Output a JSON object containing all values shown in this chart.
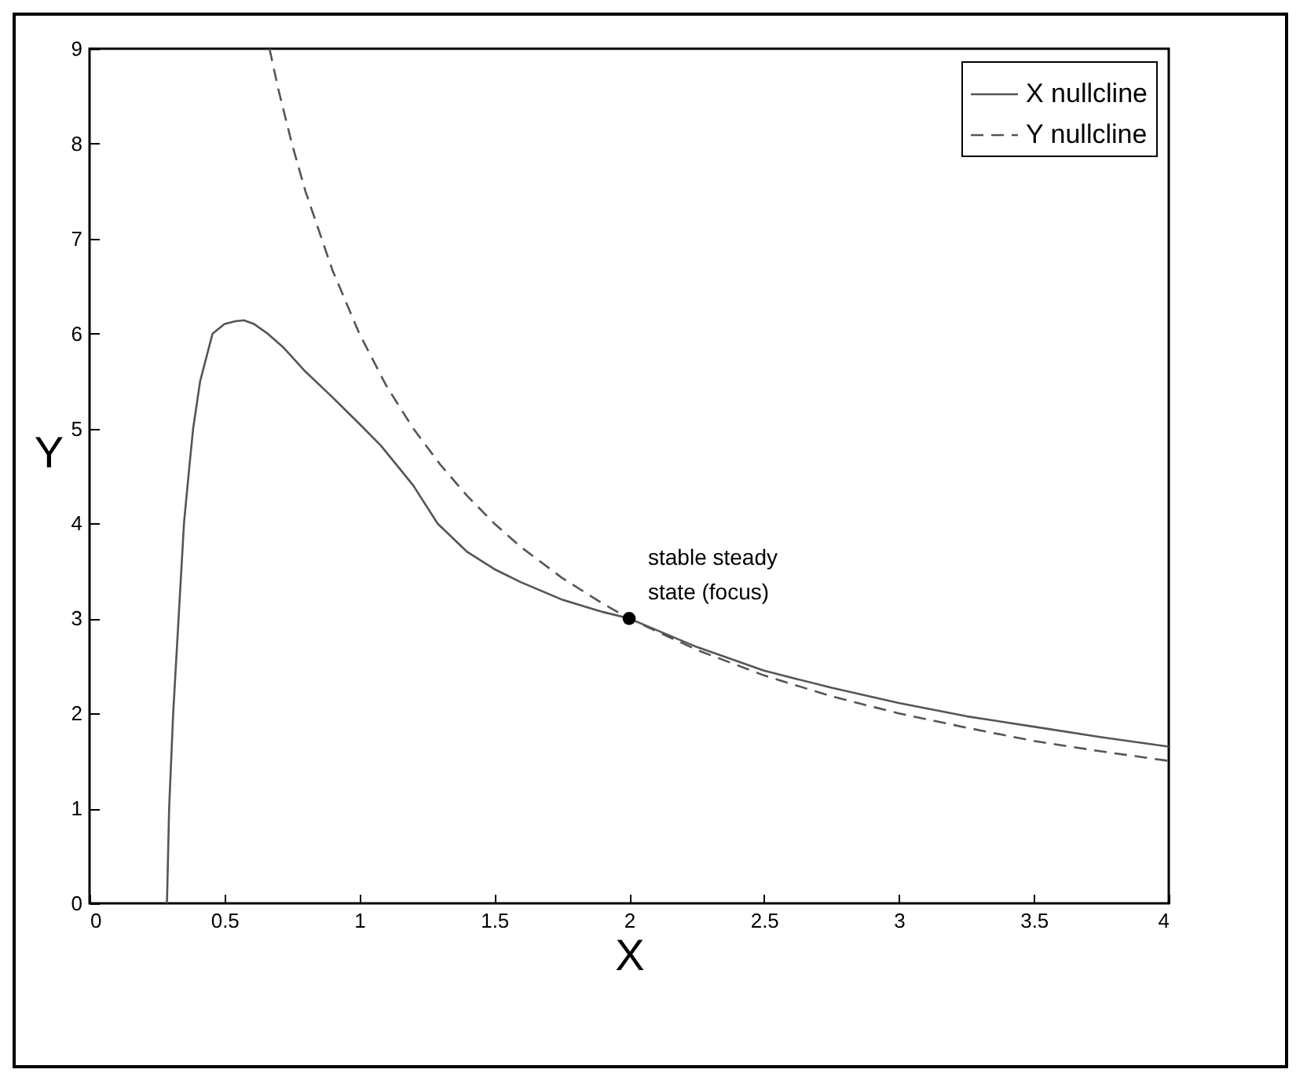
{
  "chart_data": {
    "type": "line",
    "xlabel": "X",
    "ylabel": "Y",
    "xlim": [
      0,
      4
    ],
    "ylim": [
      0,
      9
    ],
    "xticks": [
      0,
      0.5,
      1,
      1.5,
      2,
      2.5,
      3,
      3.5,
      4
    ],
    "yticks": [
      0,
      1,
      2,
      3,
      4,
      5,
      6,
      7,
      8,
      9
    ],
    "legend": "top right",
    "marker": "none",
    "grid": false,
    "series": [
      {
        "name": "X nullcline",
        "color": "#555555",
        "line_style": "solid",
        "x": [
          0.287,
          0.295,
          0.31,
          0.33,
          0.35,
          0.37,
          0.384,
          0.41,
          0.456,
          0.5,
          0.54,
          0.572,
          0.61,
          0.66,
          0.72,
          0.8,
          0.9,
          1.0,
          1.08,
          1.2,
          1.29,
          1.4,
          1.5,
          1.6,
          1.75,
          1.9,
          2.0,
          2.25,
          2.5,
          2.75,
          3.0,
          3.25,
          3.5,
          3.75,
          4.0
        ],
        "values": [
          0,
          1,
          2,
          3,
          4,
          4.6,
          5,
          5.5,
          6,
          6.1,
          6.13,
          6.14,
          6.1,
          6.0,
          5.85,
          5.6,
          5.33,
          5.05,
          4.82,
          4.4,
          4.0,
          3.7,
          3.52,
          3.38,
          3.2,
          3.07,
          3.0,
          2.7,
          2.45,
          2.27,
          2.11,
          1.97,
          1.86,
          1.75,
          1.65
        ]
      },
      {
        "name": "Y nullcline",
        "color": "#555555",
        "line_style": "dashed",
        "x": [
          0.667,
          0.7,
          0.75,
          0.8,
          0.9,
          1.0,
          1.1,
          1.2,
          1.3,
          1.4,
          1.5,
          1.6,
          1.75,
          1.9,
          2.0,
          2.25,
          2.5,
          2.75,
          3.0,
          3.25,
          3.5,
          3.75,
          4.0
        ],
        "values": [
          9.0,
          8.57,
          8.0,
          7.5,
          6.67,
          6.0,
          5.45,
          5.0,
          4.62,
          4.29,
          4.0,
          3.75,
          3.43,
          3.16,
          3.0,
          2.67,
          2.4,
          2.18,
          2.0,
          1.85,
          1.71,
          1.6,
          1.5
        ]
      },
      {
        "type": "scatter",
        "color": "#000000",
        "marker": "circle",
        "x": [
          2
        ],
        "values": [
          3
        ]
      }
    ],
    "annotations": [
      {
        "text": "stable steady\nstate (focus)",
        "x": 2,
        "y": 3
      }
    ]
  }
}
